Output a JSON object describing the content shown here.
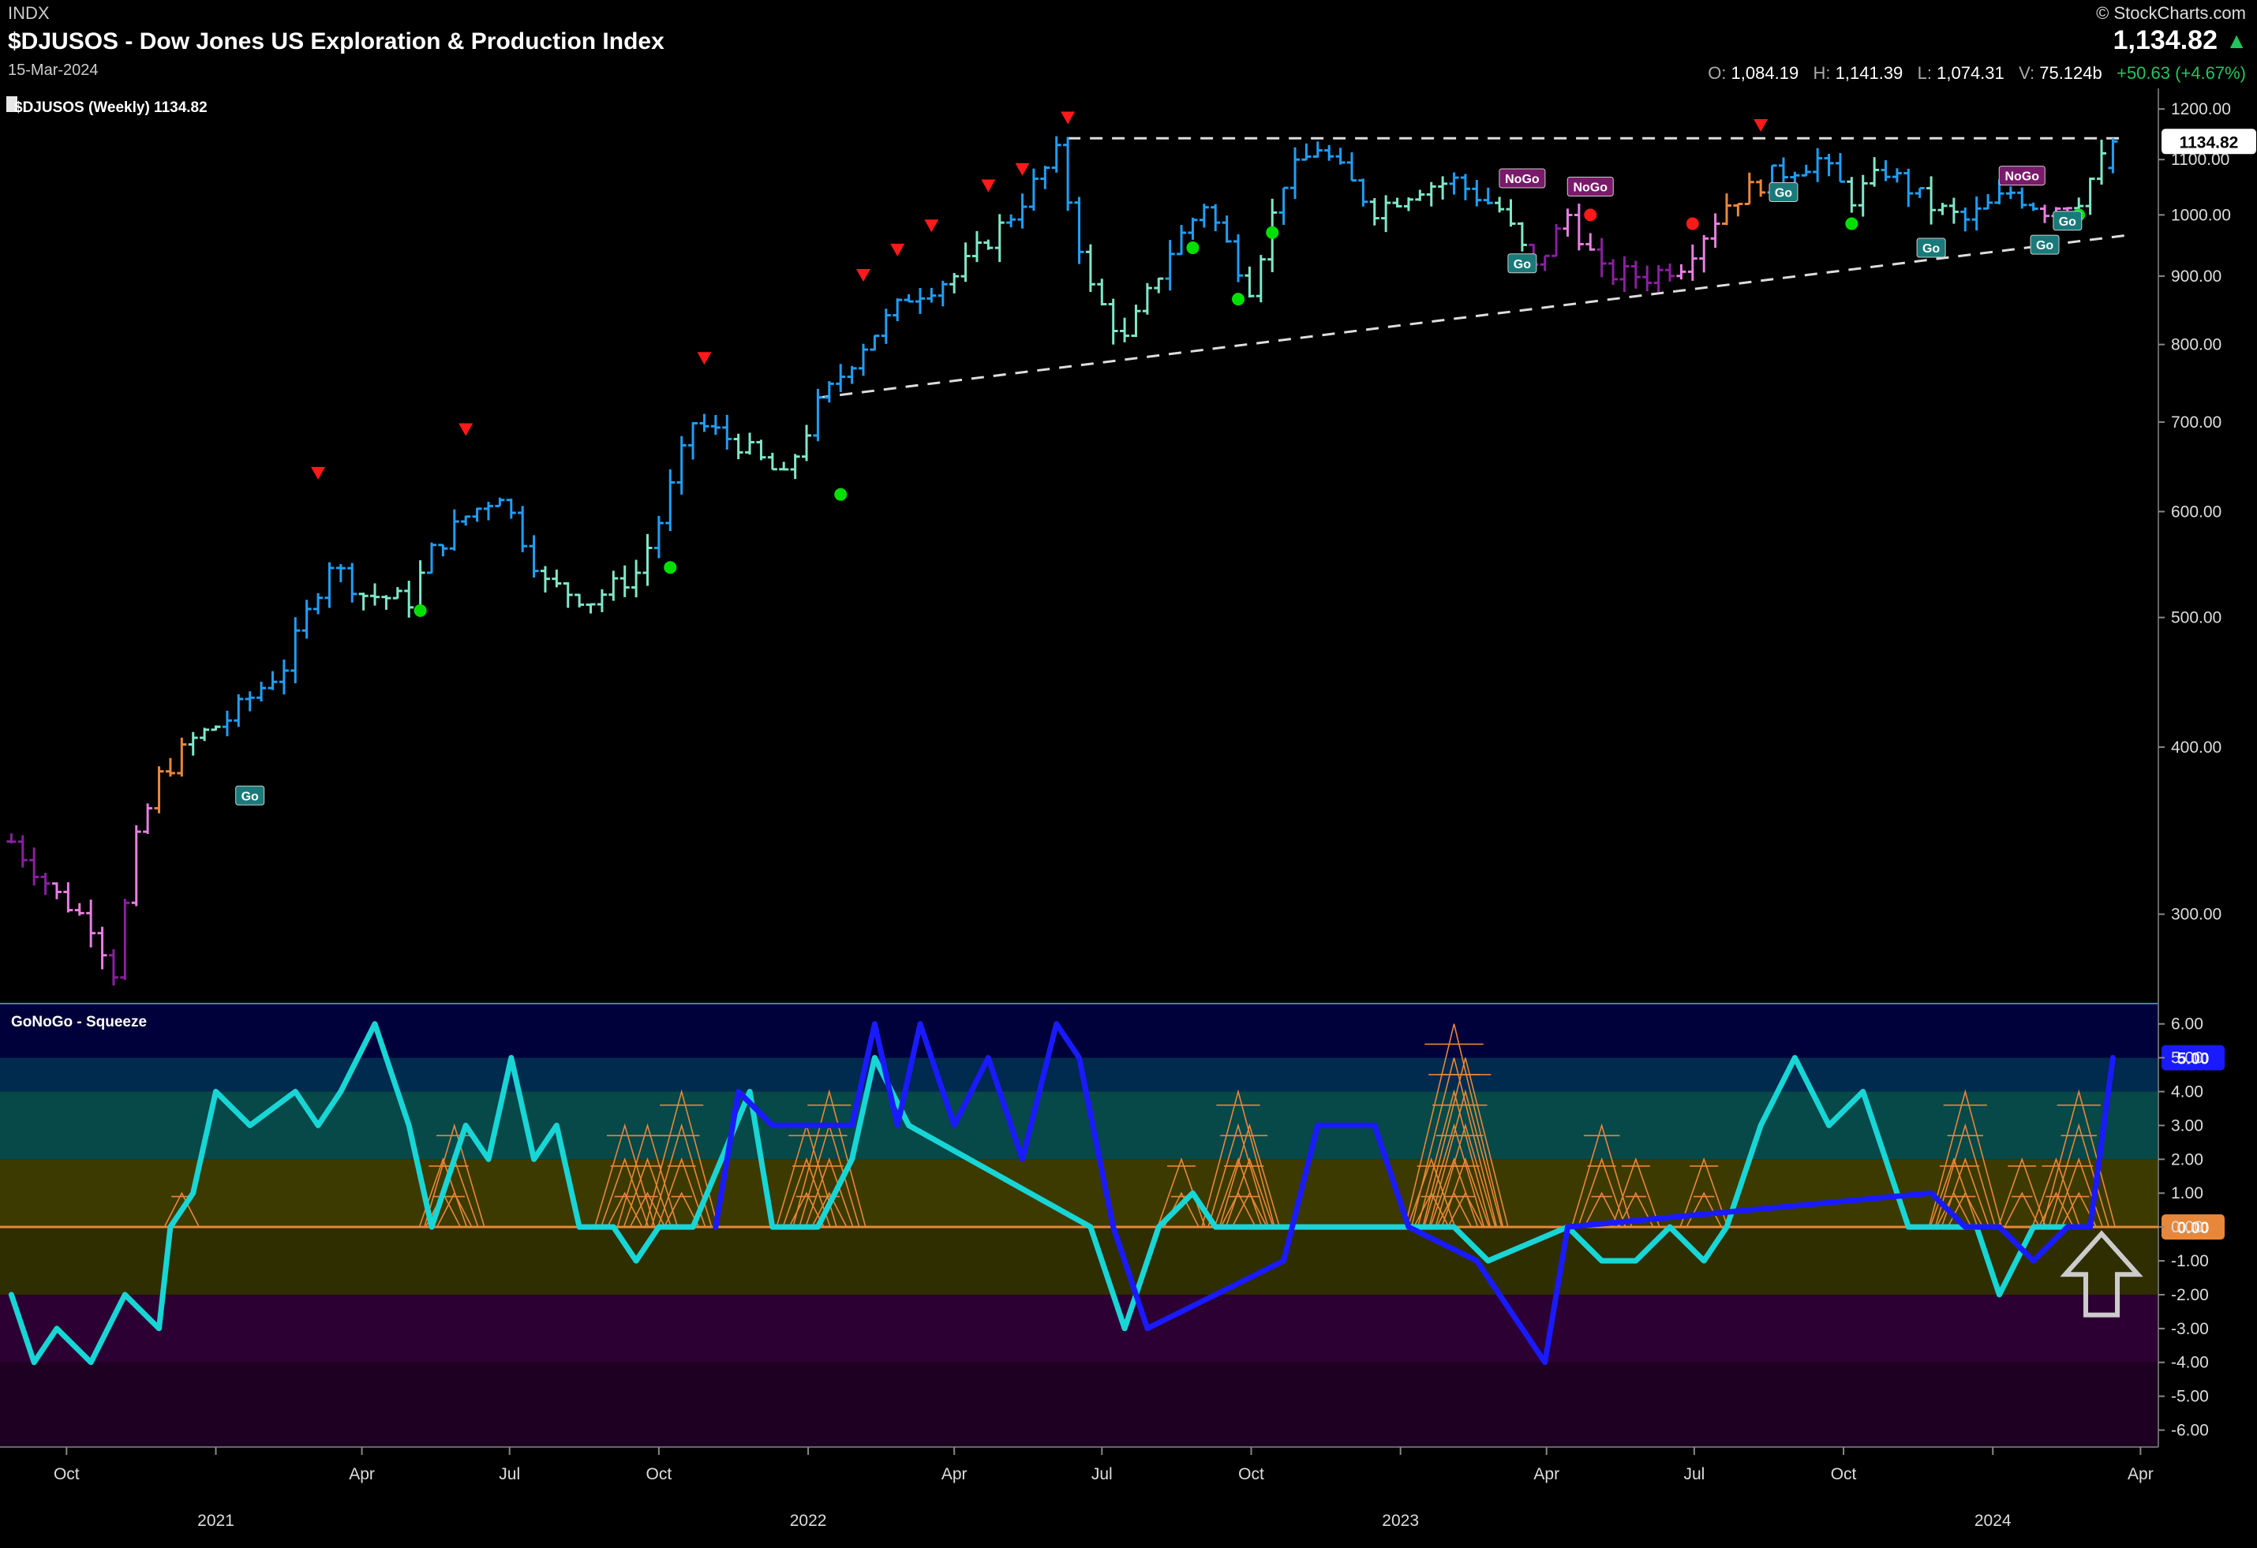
{
  "header": {
    "symbol_tag": "INDX",
    "title": "$DJUSOS - Dow Jones US Exploration & Production Index",
    "date": "15-Mar-2024",
    "brand": "© StockCharts.com",
    "last": "1,134.82",
    "open_label": "O:",
    "open": "1,084.19",
    "high_label": "H:",
    "high": "1,141.39",
    "low_label": "L:",
    "low": "1,074.31",
    "vol_label": "V:",
    "volume": "75.124b",
    "change": "+50.63 (+4.67%)"
  },
  "colors": {
    "strong_go": "#1f9ef5",
    "go": "#7ee8c8",
    "neutral": "#e8873a",
    "nogo": "#e77fe0",
    "strong_nogo": "#8a1fa0",
    "osc_blue": "#1a1aff",
    "osc_cyan": "#18d6d6",
    "zero_line": "#e8873a",
    "dots_green": "#00e000",
    "triangles_red": "#ff1a1a"
  },
  "chart_data": [
    {
      "type": "ohlc",
      "legend": "$DJUSOS (Weekly) 1134.82",
      "price_tag": "1134.82",
      "scale": "log",
      "ylim": [
        260,
        1230
      ],
      "y_ticks": [
        "1200.00",
        "1100.00",
        "1000.00",
        "900.00",
        "800.00",
        "700.00",
        "600.00",
        "500.00",
        "400.00",
        "300.00"
      ],
      "x_ticks": [
        {
          "label": "Oct",
          "x": "2020-10-01"
        },
        {
          "label": "2021",
          "x": "2021-01-01"
        },
        {
          "label": "Apr",
          "x": "2021-04-01"
        },
        {
          "label": "Jul",
          "x": "2021-07-01"
        },
        {
          "label": "Oct",
          "x": "2021-10-01"
        },
        {
          "label": "2022",
          "x": "2022-01-01"
        },
        {
          "label": "Apr",
          "x": "2022-04-01"
        },
        {
          "label": "Jul",
          "x": "2022-07-01"
        },
        {
          "label": "Oct",
          "x": "2022-10-01"
        },
        {
          "label": "2023",
          "x": "2023-01-01"
        },
        {
          "label": "Apr",
          "x": "2023-04-01"
        },
        {
          "label": "Jul",
          "x": "2023-07-01"
        },
        {
          "label": "Oct",
          "x": "2023-10-01"
        },
        {
          "label": "2024",
          "x": "2024-01-01"
        },
        {
          "label": "Apr",
          "x": "2024-04-01"
        }
      ],
      "price_path": [
        [
          "2020-08-28",
          340,
          "strong_nogo"
        ],
        [
          "2020-09-25",
          310,
          "nogo"
        ],
        [
          "2020-10-16",
          295,
          "nogo"
        ],
        [
          "2020-10-30",
          272,
          "strong_nogo"
        ],
        [
          "2020-11-13",
          340,
          "nogo"
        ],
        [
          "2020-11-27",
          380,
          "neutral"
        ],
        [
          "2020-12-18",
          405,
          "go"
        ],
        [
          "2021-01-08",
          420,
          "strong_go"
        ],
        [
          "2021-02-12",
          460,
          "strong_go"
        ],
        [
          "2021-03-12",
          550,
          "strong_go"
        ],
        [
          "2021-04-02",
          520,
          "go"
        ],
        [
          "2021-04-30",
          515,
          "go"
        ],
        [
          "2021-05-14",
          560,
          "strong_go"
        ],
        [
          "2021-06-04",
          595,
          "strong_go"
        ],
        [
          "2021-06-25",
          620,
          "strong_go"
        ],
        [
          "2021-07-23",
          530,
          "go"
        ],
        [
          "2021-08-20",
          515,
          "go"
        ],
        [
          "2021-09-17",
          540,
          "go"
        ],
        [
          "2021-10-01",
          590,
          "strong_go"
        ],
        [
          "2021-10-22",
          700,
          "strong_go"
        ],
        [
          "2021-11-19",
          675,
          "go"
        ],
        [
          "2021-12-17",
          635,
          "go"
        ],
        [
          "2022-01-07",
          720,
          "strong_go"
        ],
        [
          "2022-02-04",
          800,
          "strong_go"
        ],
        [
          "2022-03-04",
          870,
          "strong_go"
        ],
        [
          "2022-04-01",
          900,
          "go"
        ],
        [
          "2022-05-06",
          1000,
          "strong_go"
        ],
        [
          "2022-06-03",
          1110,
          "strong_go"
        ],
        [
          "2022-06-24",
          880,
          "go"
        ],
        [
          "2022-07-15",
          805,
          "go"
        ],
        [
          "2022-08-12",
          940,
          "strong_go"
        ],
        [
          "2022-09-02",
          1020,
          "strong_go"
        ],
        [
          "2022-09-30",
          885,
          "go"
        ],
        [
          "2022-10-21",
          1060,
          "strong_go"
        ],
        [
          "2022-11-11",
          1125,
          "strong_go"
        ],
        [
          "2022-12-16",
          1010,
          "go"
        ],
        [
          "2023-01-13",
          1050,
          "go"
        ],
        [
          "2023-02-03",
          1060,
          "strong_go"
        ],
        [
          "2023-03-03",
          1010,
          "go"
        ],
        [
          "2023-03-24",
          910,
          "strong_nogo"
        ],
        [
          "2023-04-14",
          1000,
          "nogo"
        ],
        [
          "2023-05-05",
          905,
          "strong_nogo"
        ],
        [
          "2023-06-02",
          900,
          "strong_nogo"
        ],
        [
          "2023-06-23",
          920,
          "nogo"
        ],
        [
          "2023-07-21",
          1020,
          "neutral"
        ],
        [
          "2023-08-18",
          1070,
          "strong_go"
        ],
        [
          "2023-09-15",
          1100,
          "strong_go"
        ],
        [
          "2023-10-06",
          1030,
          "go"
        ],
        [
          "2023-10-27",
          1080,
          "strong_go"
        ],
        [
          "2023-11-24",
          1015,
          "go"
        ],
        [
          "2023-12-15",
          990,
          "strong_go"
        ],
        [
          "2024-01-12",
          1040,
          "strong_go"
        ],
        [
          "2024-02-02",
          1010,
          "nogo"
        ],
        [
          "2024-02-23",
          1030,
          "go"
        ],
        [
          "2024-03-15",
          1134.82,
          "strong_go"
        ]
      ],
      "resistance_line": {
        "y": 1141,
        "x_start": "2022-06-10",
        "x_end": "2024-03-22"
      },
      "support_line": {
        "x_start": "2022-01-07",
        "y_start": 730,
        "x_end": "2024-03-22",
        "y_end": 965
      },
      "triangles": [
        [
          "2021-03-05",
          640
        ],
        [
          "2021-06-04",
          690
        ],
        [
          "2021-10-29",
          780
        ],
        [
          "2022-02-04",
          900
        ],
        [
          "2022-02-25",
          940
        ],
        [
          "2022-03-18",
          980
        ],
        [
          "2022-04-22",
          1050
        ],
        [
          "2022-05-13",
          1080
        ],
        [
          "2022-06-10",
          1180
        ],
        [
          "2023-08-11",
          1165
        ]
      ],
      "dots": [
        [
          "2021-05-07",
          506,
          "green"
        ],
        [
          "2021-10-08",
          545,
          "green"
        ],
        [
          "2022-01-21",
          618,
          "green"
        ],
        [
          "2022-08-26",
          945,
          "green"
        ],
        [
          "2022-09-23",
          865,
          "green"
        ],
        [
          "2022-10-14",
          970,
          "green"
        ],
        [
          "2023-04-28",
          1000,
          "red"
        ],
        [
          "2023-06-30",
          985,
          "red"
        ],
        [
          "2023-10-06",
          985,
          "green"
        ],
        [
          "2024-02-23",
          1000,
          "green"
        ]
      ],
      "signals": [
        [
          "2021-01-22",
          368,
          "Go"
        ],
        [
          "2023-03-17",
          1065,
          "NoGo"
        ],
        [
          "2023-03-17",
          920,
          "Go"
        ],
        [
          "2023-04-28",
          1050,
          "NoGo"
        ],
        [
          "2023-08-25",
          1040,
          "Go"
        ],
        [
          "2023-11-24",
          945,
          "Go"
        ],
        [
          "2024-01-19",
          1070,
          "NoGo"
        ],
        [
          "2024-02-02",
          950,
          "Go"
        ],
        [
          "2024-02-16",
          990,
          "Go"
        ]
      ]
    },
    {
      "type": "line",
      "legend": "GoNoGo - Squeeze",
      "value_tag": "5.00",
      "zero_tag": "0.00",
      "ylim": [
        -6.5,
        6.6
      ],
      "y_ticks": [
        "6.00",
        "5.00",
        "4.00",
        "3.00",
        "2.00",
        "1.00",
        "0.00",
        "-1.00",
        "-2.00",
        "-3.00",
        "-4.00",
        "-5.00",
        "-6.00"
      ],
      "series": [
        {
          "color_key": "osc_cyan",
          "points": [
            [
              "2020-08-28",
              -2
            ],
            [
              "2020-09-11",
              -4
            ],
            [
              "2020-09-25",
              -3
            ],
            [
              "2020-10-16",
              -4
            ],
            [
              "2020-11-06",
              -2
            ],
            [
              "2020-11-27",
              -3
            ],
            [
              "2020-12-04",
              0
            ],
            [
              "2020-12-18",
              1
            ],
            [
              "2021-01-01",
              4
            ],
            [
              "2021-01-22",
              3
            ],
            [
              "2021-02-19",
              4
            ],
            [
              "2021-03-05",
              3
            ],
            [
              "2021-03-19",
              4
            ],
            [
              "2021-04-09",
              6
            ],
            [
              "2021-04-30",
              3
            ],
            [
              "2021-05-14",
              0
            ],
            [
              "2021-06-04",
              3
            ],
            [
              "2021-06-18",
              2
            ],
            [
              "2021-07-02",
              5
            ],
            [
              "2021-07-16",
              2
            ],
            [
              "2021-07-30",
              3
            ],
            [
              "2021-08-13",
              0
            ],
            [
              "2021-09-03",
              0
            ],
            [
              "2021-09-17",
              -1
            ],
            [
              "2021-10-01",
              0
            ],
            [
              "2021-10-22",
              0
            ],
            [
              "2021-11-26",
              4
            ],
            [
              "2021-12-10",
              0
            ],
            [
              "2022-01-07",
              0
            ],
            [
              "2022-01-28",
              2
            ],
            [
              "2022-02-11",
              5
            ],
            [
              "2022-03-04",
              3
            ],
            [
              "2022-06-24",
              0
            ],
            [
              "2022-07-15",
              -3
            ],
            [
              "2022-08-05",
              0
            ],
            [
              "2022-08-26",
              1
            ],
            [
              "2022-09-09",
              0
            ],
            [
              "2022-10-07",
              0
            ],
            [
              "2022-12-02",
              0
            ],
            [
              "2023-02-03",
              0
            ],
            [
              "2023-02-24",
              -1
            ],
            [
              "2023-04-14",
              0
            ],
            [
              "2023-05-05",
              -1
            ],
            [
              "2023-05-26",
              -1
            ],
            [
              "2023-06-16",
              0
            ],
            [
              "2023-07-07",
              -1
            ],
            [
              "2023-07-21",
              0
            ],
            [
              "2023-08-11",
              3
            ],
            [
              "2023-09-01",
              5
            ],
            [
              "2023-09-22",
              3
            ],
            [
              "2023-10-13",
              4
            ],
            [
              "2023-11-10",
              0
            ],
            [
              "2023-12-01",
              0
            ],
            [
              "2023-12-22",
              0
            ],
            [
              "2024-01-05",
              -2
            ],
            [
              "2024-01-26",
              0
            ],
            [
              "2024-02-16",
              0
            ]
          ]
        },
        {
          "color_key": "osc_blue",
          "points": [
            [
              "2021-11-05",
              0
            ],
            [
              "2021-11-19",
              4
            ],
            [
              "2021-12-10",
              3
            ],
            [
              "2022-01-28",
              3
            ],
            [
              "2022-02-11",
              6
            ],
            [
              "2022-02-25",
              3
            ],
            [
              "2022-03-11",
              6
            ],
            [
              "2022-04-01",
              3
            ],
            [
              "2022-04-22",
              5
            ],
            [
              "2022-05-13",
              2
            ],
            [
              "2022-06-03",
              6
            ],
            [
              "2022-06-17",
              5
            ],
            [
              "2022-07-08",
              0
            ],
            [
              "2022-07-29",
              -3
            ],
            [
              "2022-10-21",
              -1
            ],
            [
              "2022-11-11",
              3
            ],
            [
              "2022-12-16",
              3
            ],
            [
              "2023-01-06",
              0
            ],
            [
              "2023-02-17",
              -1
            ],
            [
              "2023-03-31",
              -4
            ],
            [
              "2023-04-14",
              0
            ],
            [
              "2023-11-24",
              1
            ],
            [
              "2023-12-15",
              0
            ],
            [
              "2024-01-05",
              0
            ],
            [
              "2024-01-26",
              -1
            ],
            [
              "2024-02-16",
              0
            ],
            [
              "2024-03-01",
              0
            ],
            [
              "2024-03-15",
              5
            ]
          ]
        }
      ],
      "squeeze_spikes": [
        [
          "2020-12-11",
          1
        ],
        [
          "2021-05-21",
          2
        ],
        [
          "2021-05-28",
          3
        ],
        [
          "2021-09-10",
          3
        ],
        [
          "2021-09-24",
          3
        ],
        [
          "2021-10-15",
          4
        ],
        [
          "2021-12-31",
          3
        ],
        [
          "2022-01-14",
          4
        ],
        [
          "2022-08-19",
          2
        ],
        [
          "2022-09-23",
          4
        ],
        [
          "2022-09-30",
          3
        ],
        [
          "2023-01-20",
          2
        ],
        [
          "2023-02-03",
          6
        ],
        [
          "2023-02-10",
          5
        ],
        [
          "2023-05-05",
          3
        ],
        [
          "2023-05-26",
          2
        ],
        [
          "2023-07-07",
          2
        ],
        [
          "2023-12-08",
          2
        ],
        [
          "2023-12-15",
          4
        ],
        [
          "2024-01-19",
          2
        ],
        [
          "2024-02-09",
          2
        ],
        [
          "2024-02-23",
          4
        ]
      ]
    }
  ]
}
